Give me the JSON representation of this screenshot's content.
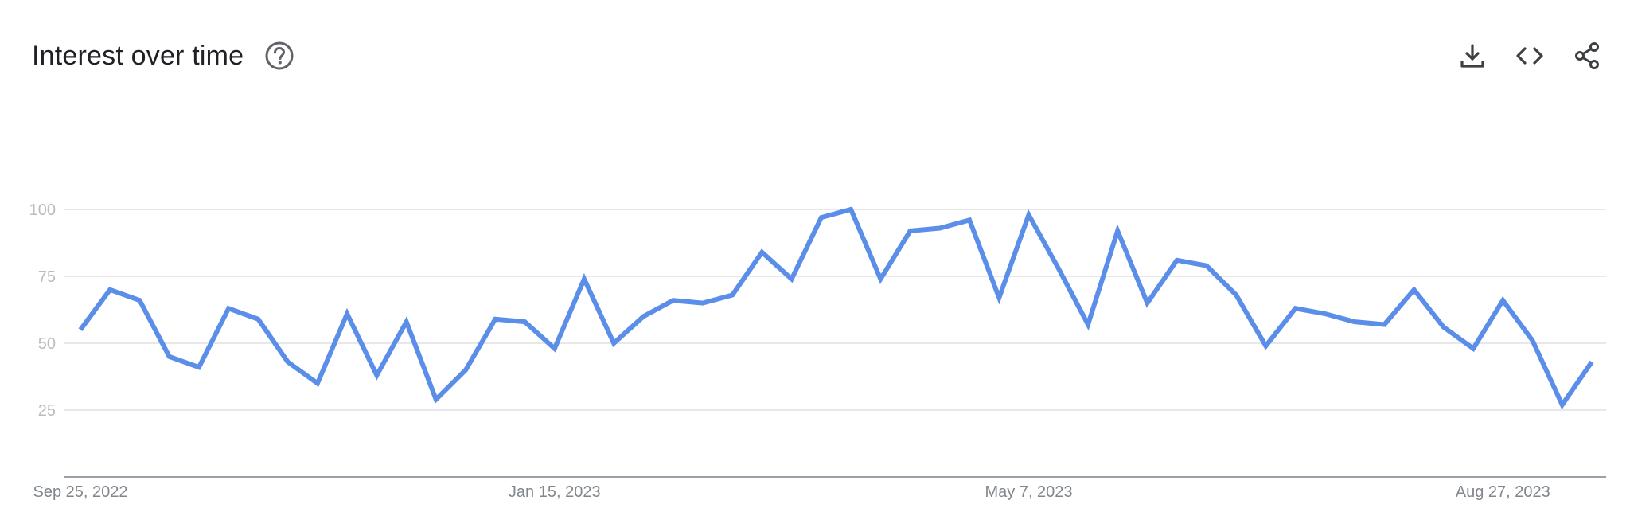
{
  "header": {
    "title": "Interest over time",
    "help_icon": "help-circle-icon"
  },
  "actions": [
    {
      "name": "download-button",
      "icon": "download-icon"
    },
    {
      "name": "embed-button",
      "icon": "code-icon"
    },
    {
      "name": "share-button",
      "icon": "share-icon"
    }
  ],
  "colors": {
    "line": "#5b8ee8",
    "grid": "#e0e0e0",
    "axis": "#9aa0a6"
  },
  "chart_data": {
    "type": "line",
    "title": "Interest over time",
    "xlabel": "",
    "ylabel": "",
    "ylim": [
      0,
      100
    ],
    "grid": true,
    "x_start": "2022-09-25",
    "x_step": "1 week",
    "x_ticks": [
      "Sep 25, 2022",
      "Jan 15, 2023",
      "May 7, 2023",
      "Aug 27, 2023"
    ],
    "x_tick_indices": [
      0,
      16,
      32,
      48
    ],
    "y_ticks": [
      25,
      50,
      75,
      100
    ],
    "series": [
      {
        "name": "",
        "values": [
          55,
          70,
          66,
          45,
          41,
          63,
          59,
          43,
          35,
          61,
          38,
          58,
          29,
          40,
          59,
          58,
          48,
          74,
          50,
          60,
          66,
          65,
          68,
          84,
          74,
          97,
          100,
          74,
          92,
          93,
          96,
          67,
          98,
          78,
          57,
          92,
          65,
          81,
          79,
          68,
          49,
          63,
          61,
          58,
          57,
          70,
          56,
          48,
          66,
          51,
          27,
          43
        ]
      }
    ]
  }
}
